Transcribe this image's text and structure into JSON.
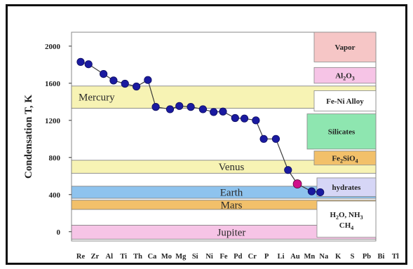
{
  "chart_data": {
    "type": "line",
    "ylabel": "Condensation T, K",
    "ylim": [
      -100,
      2150
    ],
    "yticks": [
      0,
      400,
      800,
      1200,
      1600,
      2000
    ],
    "x_categories": [
      "Re",
      "Zr",
      "Al",
      "Ti",
      "Th",
      "Ca",
      "Mo",
      "Mg",
      "Si",
      "Ni",
      "Fe",
      "Pd",
      "Cr",
      "P",
      "Li",
      "Au",
      "Mn",
      "Na",
      "K",
      "S",
      "Pb",
      "Bi",
      "Tl"
    ],
    "highlight_category": "Pb",
    "highlight_color": "#d0108a",
    "series": [
      {
        "marker_color": "#1a1aa0",
        "line_color": "#3a3a3a",
        "points": [
          {
            "x": 0.0,
            "y": 1830
          },
          {
            "x": 0.55,
            "y": 1805
          },
          {
            "x": 1.6,
            "y": 1700
          },
          {
            "x": 2.3,
            "y": 1630
          },
          {
            "x": 3.1,
            "y": 1595
          },
          {
            "x": 3.9,
            "y": 1565
          },
          {
            "x": 4.7,
            "y": 1635
          },
          {
            "x": 5.25,
            "y": 1345
          },
          {
            "x": 6.25,
            "y": 1320
          },
          {
            "x": 6.9,
            "y": 1355
          },
          {
            "x": 7.7,
            "y": 1345
          },
          {
            "x": 8.55,
            "y": 1320
          },
          {
            "x": 9.3,
            "y": 1290
          },
          {
            "x": 9.95,
            "y": 1295
          },
          {
            "x": 10.8,
            "y": 1225
          },
          {
            "x": 11.45,
            "y": 1220
          },
          {
            "x": 12.25,
            "y": 1200
          },
          {
            "x": 12.8,
            "y": 1000
          },
          {
            "x": 13.65,
            "y": 1000
          },
          {
            "x": 14.5,
            "y": 665
          },
          {
            "x": 15.15,
            "y": 515
          },
          {
            "x": 16.15,
            "y": 435
          },
          {
            "x": 16.75,
            "y": 425
          }
        ],
        "highlight_point_index": 20
      }
    ],
    "planet_bands": [
      {
        "label": "Mercury",
        "y0": 1330,
        "y1": 1570,
        "color": "#f7f3b4"
      },
      {
        "label": "Venus",
        "y0": 630,
        "y1": 770,
        "color": "#f7f3b4"
      },
      {
        "label": "Earth",
        "y0": 360,
        "y1": 490,
        "color": "#8ec3ee"
      },
      {
        "label": "Mars",
        "y0": 240,
        "y1": 340,
        "color": "#f2c06a"
      },
      {
        "label": "Jupiter",
        "y0": -80,
        "y1": 70,
        "color": "#f6c4e6"
      }
    ],
    "condensate_zones": [
      {
        "label": "Vapor",
        "y0": 1830,
        "y1": 2150,
        "color": "#f6c6c6"
      },
      {
        "label": "Al2O3",
        "y0": 1600,
        "y1": 1770,
        "color": "#f6c4e6"
      },
      {
        "label": "Fe-Ni Alloy",
        "y0": 1300,
        "y1": 1520,
        "color": "#ffffff"
      },
      {
        "label": "Silicates",
        "y0": 890,
        "y1": 1270,
        "color": "#8ee6b0"
      },
      {
        "label": "Fe2SiO4",
        "y0": 720,
        "y1": 870,
        "color": "#f2c06a"
      },
      {
        "label": "hydrates",
        "y0": 380,
        "y1": 580,
        "color": "#d6d6f6"
      },
      {
        "label": "H2O, NH3, CH4",
        "y0": -60,
        "y1": 330,
        "color": "#ffffff"
      }
    ]
  }
}
